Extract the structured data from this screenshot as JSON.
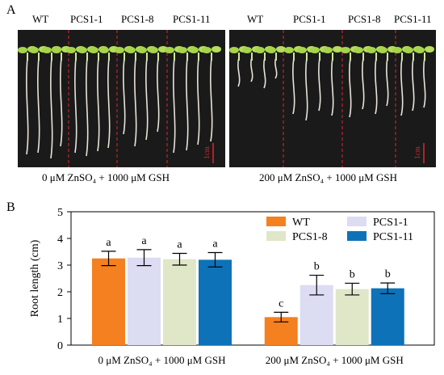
{
  "panel_a": {
    "letter": "A",
    "genotypes_left": [
      "WT",
      "PCS1-1",
      "PCS1-8",
      "PCS1-11"
    ],
    "genotypes_right": [
      "WT",
      "PCS1-1",
      "PCS1-8",
      "PCS1-11"
    ],
    "scale_bar": "1cm",
    "condition_left": "0 μM ZnSO₄ + 1000 μM GSH",
    "condition_right": "200 μM ZnSO₄ + 1000 μM GSH",
    "divider_color": "#e0262b"
  },
  "panel_b": {
    "letter": "B"
  },
  "chart_data": {
    "type": "bar",
    "categories": [
      "0 μM ZnSO₄ + 1000 μM GSH",
      "200 μM ZnSO₄ + 1000 μM GSH"
    ],
    "ylabel": "Root length (cm)",
    "ylim": [
      0,
      5
    ],
    "yticks": [
      "0",
      "1",
      "2",
      "3",
      "4",
      "5"
    ],
    "legend_position": "top-right",
    "series": [
      {
        "name": "WT",
        "color": "#f5801f",
        "values": [
          3.25,
          1.05
        ],
        "errors": [
          0.27,
          0.18
        ],
        "letters": [
          "a",
          "c"
        ]
      },
      {
        "name": "PCS1-1",
        "color": "#dcdcf3",
        "values": [
          3.28,
          2.25
        ],
        "errors": [
          0.3,
          0.37
        ],
        "letters": [
          "a",
          "b"
        ]
      },
      {
        "name": "PCS1-8",
        "color": "#e0e6c8",
        "values": [
          3.22,
          2.1
        ],
        "errors": [
          0.22,
          0.22
        ],
        "letters": [
          "a",
          "b"
        ]
      },
      {
        "name": "PCS1-11",
        "color": "#0e72b8",
        "values": [
          3.2,
          2.13
        ],
        "errors": [
          0.27,
          0.2
        ],
        "letters": [
          "a",
          "b"
        ]
      }
    ]
  }
}
